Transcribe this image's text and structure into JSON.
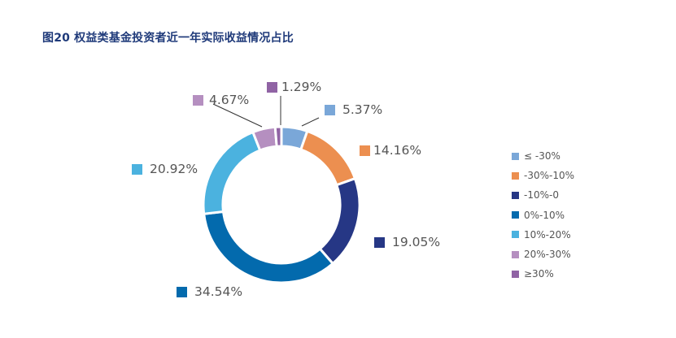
{
  "title": "图20 权益类基金投资者近一年实际收益情况占比",
  "chart_data": {
    "type": "pie",
    "subtype": "donut",
    "title": "图20 权益类基金投资者近一年实际收益情况占比",
    "categories": [
      "≤ -30%",
      "-30%-10%",
      "-10%-0",
      "0%-10%",
      "10%-20%",
      "20%-30%",
      "≥30%"
    ],
    "values": [
      5.37,
      14.16,
      19.05,
      34.54,
      20.92,
      4.67,
      1.29
    ],
    "labels": [
      "5.37%",
      "14.16%",
      "19.05%",
      "34.54%",
      "20.92%",
      "4.67%",
      "1.29%"
    ],
    "colors": [
      "#7aa7d8",
      "#ec8f50",
      "#263785",
      "#036aad",
      "#4bb2df",
      "#b58fc0",
      "#9063a4"
    ],
    "legend_position": "right",
    "start_angle_deg": 0,
    "direction": "clockwise"
  },
  "legend": {
    "items": [
      {
        "label": "≤ -30%",
        "color": "#7aa7d8"
      },
      {
        "label": "-30%-10%",
        "color": "#ec8f50"
      },
      {
        "label": "-10%-0",
        "color": "#263785"
      },
      {
        "label": "0%-10%",
        "color": "#036aad"
      },
      {
        "label": "10%-20%",
        "color": "#4bb2df"
      },
      {
        "label": "20%-30%",
        "color": "#b58fc0"
      },
      {
        "label": "≥30%",
        "color": "#9063a4"
      }
    ]
  },
  "data_labels": [
    {
      "text": "5.37%",
      "color": "#7aa7d8"
    },
    {
      "text": "14.16%",
      "color": "#ec8f50"
    },
    {
      "text": "19.05%",
      "color": "#263785"
    },
    {
      "text": "34.54%",
      "color": "#036aad"
    },
    {
      "text": "20.92%",
      "color": "#4bb2df"
    },
    {
      "text": "4.67%",
      "color": "#b58fc0"
    },
    {
      "text": "1.29%",
      "color": "#9063a4"
    }
  ]
}
